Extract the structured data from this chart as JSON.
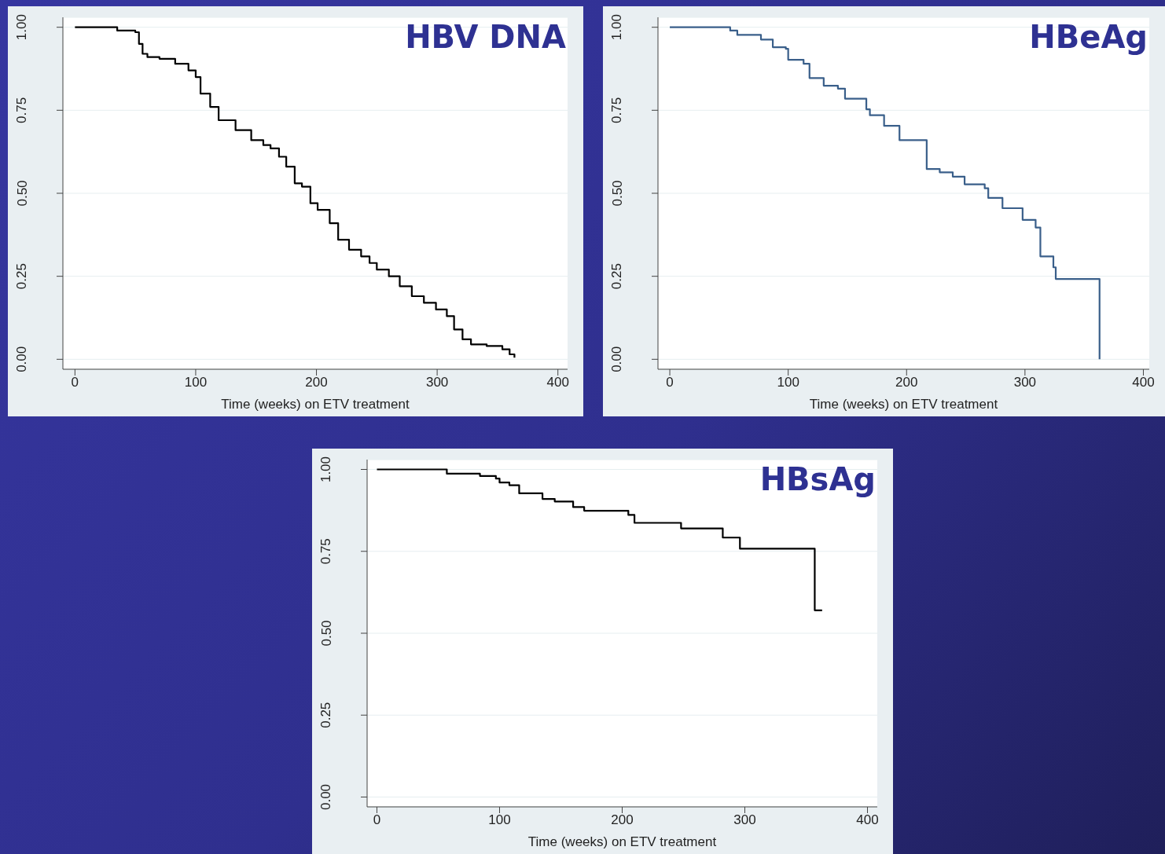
{
  "chart_data": [
    {
      "type": "step",
      "title": "HBV DNA",
      "xlabel": "Time (weeks) on ETV treatment",
      "xlim": [
        -10,
        408
      ],
      "ylim": [
        -0.03,
        1.03
      ],
      "xticks": [
        0,
        100,
        200,
        300,
        400
      ],
      "yticks": [
        {
          "value": 0,
          "label": "0.00"
        },
        {
          "value": 0.25,
          "label": "0.25"
        },
        {
          "value": 0.5,
          "label": "0.50"
        },
        {
          "value": 0.75,
          "label": "0.75"
        },
        {
          "value": 1,
          "label": "1.00"
        }
      ],
      "grid": "y",
      "legend": false,
      "marker": "none",
      "line_style": "solid",
      "series": [
        {
          "color": "#000000",
          "x": [
            0,
            35,
            50,
            53,
            56,
            60,
            70,
            83,
            94,
            100,
            104,
            112,
            119,
            133,
            146,
            156,
            162,
            169,
            175,
            182,
            188,
            195,
            201,
            211,
            218,
            227,
            237,
            244,
            250,
            260,
            269,
            279,
            289,
            299,
            308,
            314,
            321,
            328,
            341,
            354,
            360,
            364
          ],
          "values": [
            1.0,
            0.99,
            0.985,
            0.95,
            0.92,
            0.91,
            0.905,
            0.89,
            0.87,
            0.85,
            0.8,
            0.76,
            0.72,
            0.69,
            0.66,
            0.645,
            0.635,
            0.61,
            0.58,
            0.53,
            0.52,
            0.47,
            0.45,
            0.41,
            0.36,
            0.33,
            0.31,
            0.29,
            0.27,
            0.25,
            0.22,
            0.19,
            0.17,
            0.15,
            0.13,
            0.09,
            0.06,
            0.045,
            0.04,
            0.03,
            0.015,
            0.005
          ]
        }
      ]
    },
    {
      "type": "step",
      "title": "HBeAg",
      "xlabel": "Time (weeks) on ETV treatment",
      "xlim": [
        -10,
        405
      ],
      "ylim": [
        -0.03,
        1.03
      ],
      "xticks": [
        0,
        100,
        200,
        300,
        400
      ],
      "yticks": [
        {
          "value": 0,
          "label": "0.00"
        },
        {
          "value": 0.25,
          "label": "0.25"
        },
        {
          "value": 0.5,
          "label": "0.50"
        },
        {
          "value": 0.75,
          "label": "0.75"
        },
        {
          "value": 1,
          "label": "1.00"
        }
      ],
      "grid": "y",
      "legend": false,
      "marker": "none",
      "line_style": "solid",
      "series": [
        {
          "color": "#3a5f8a",
          "x": [
            0,
            51,
            57,
            77,
            87,
            98,
            100,
            113,
            118,
            130,
            142,
            148,
            166,
            169,
            181,
            194,
            217,
            228,
            239,
            249,
            266,
            269,
            281,
            298,
            309,
            313,
            324,
            326,
            363
          ],
          "values": [
            1.0,
            0.99,
            0.977,
            0.963,
            0.94,
            0.935,
            0.902,
            0.89,
            0.847,
            0.824,
            0.815,
            0.785,
            0.753,
            0.735,
            0.703,
            0.66,
            0.573,
            0.563,
            0.55,
            0.527,
            0.515,
            0.486,
            0.455,
            0.42,
            0.397,
            0.31,
            0.277,
            0.242,
            0.0
          ]
        }
      ]
    },
    {
      "type": "step",
      "title": "HBsAg",
      "xlabel": "Time (weeks) on ETV treatment",
      "xlim": [
        -8,
        408
      ],
      "ylim": [
        -0.03,
        1.03
      ],
      "xticks": [
        0,
        100,
        200,
        300,
        400
      ],
      "yticks": [
        {
          "value": 0,
          "label": "0.00"
        },
        {
          "value": 0.25,
          "label": "0.25"
        },
        {
          "value": 0.5,
          "label": "0.50"
        },
        {
          "value": 0.75,
          "label": "0.75"
        },
        {
          "value": 1,
          "label": "1.00"
        }
      ],
      "grid": "y",
      "legend": false,
      "marker": "none",
      "line_style": "solid",
      "series": [
        {
          "color": "#000000",
          "x": [
            0,
            57,
            84,
            97,
            100,
            108,
            116,
            135,
            145,
            160,
            169,
            205,
            210,
            248,
            282,
            296,
            357,
            363
          ],
          "values": [
            1.0,
            0.987,
            0.98,
            0.972,
            0.96,
            0.952,
            0.927,
            0.91,
            0.902,
            0.885,
            0.874,
            0.861,
            0.837,
            0.82,
            0.792,
            0.758,
            0.57,
            0.57
          ]
        }
      ]
    }
  ]
}
